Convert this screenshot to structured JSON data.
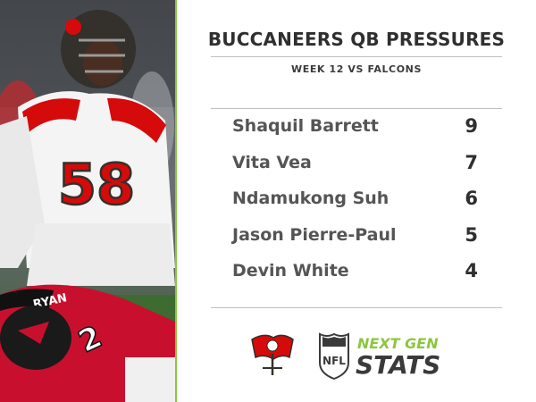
{
  "title": "BUCCANEERS QB PRESSURES",
  "subtitle": "WEEK 12 VS FALCONS",
  "players": [
    {
      "name": "Shaquil Barrett",
      "pressures": "9"
    },
    {
      "name": "Vita Vea",
      "pressures": "7"
    },
    {
      "name": "Ndamukong Suh",
      "pressures": "6"
    },
    {
      "name": "Jason Pierre-Paul",
      "pressures": "5"
    },
    {
      "name": "Devin White",
      "pressures": "4"
    }
  ],
  "photo": {
    "jersey_number": "58",
    "opponent_number": "2",
    "opponent_name": "RYAN"
  },
  "branding": {
    "ngs_line1": "NEXT GEN",
    "ngs_line2": "STATS",
    "nfl": "NFL",
    "accent_green": "#8cc63f",
    "bucs_red": "#d50a0a",
    "pewter": "#34302b"
  }
}
